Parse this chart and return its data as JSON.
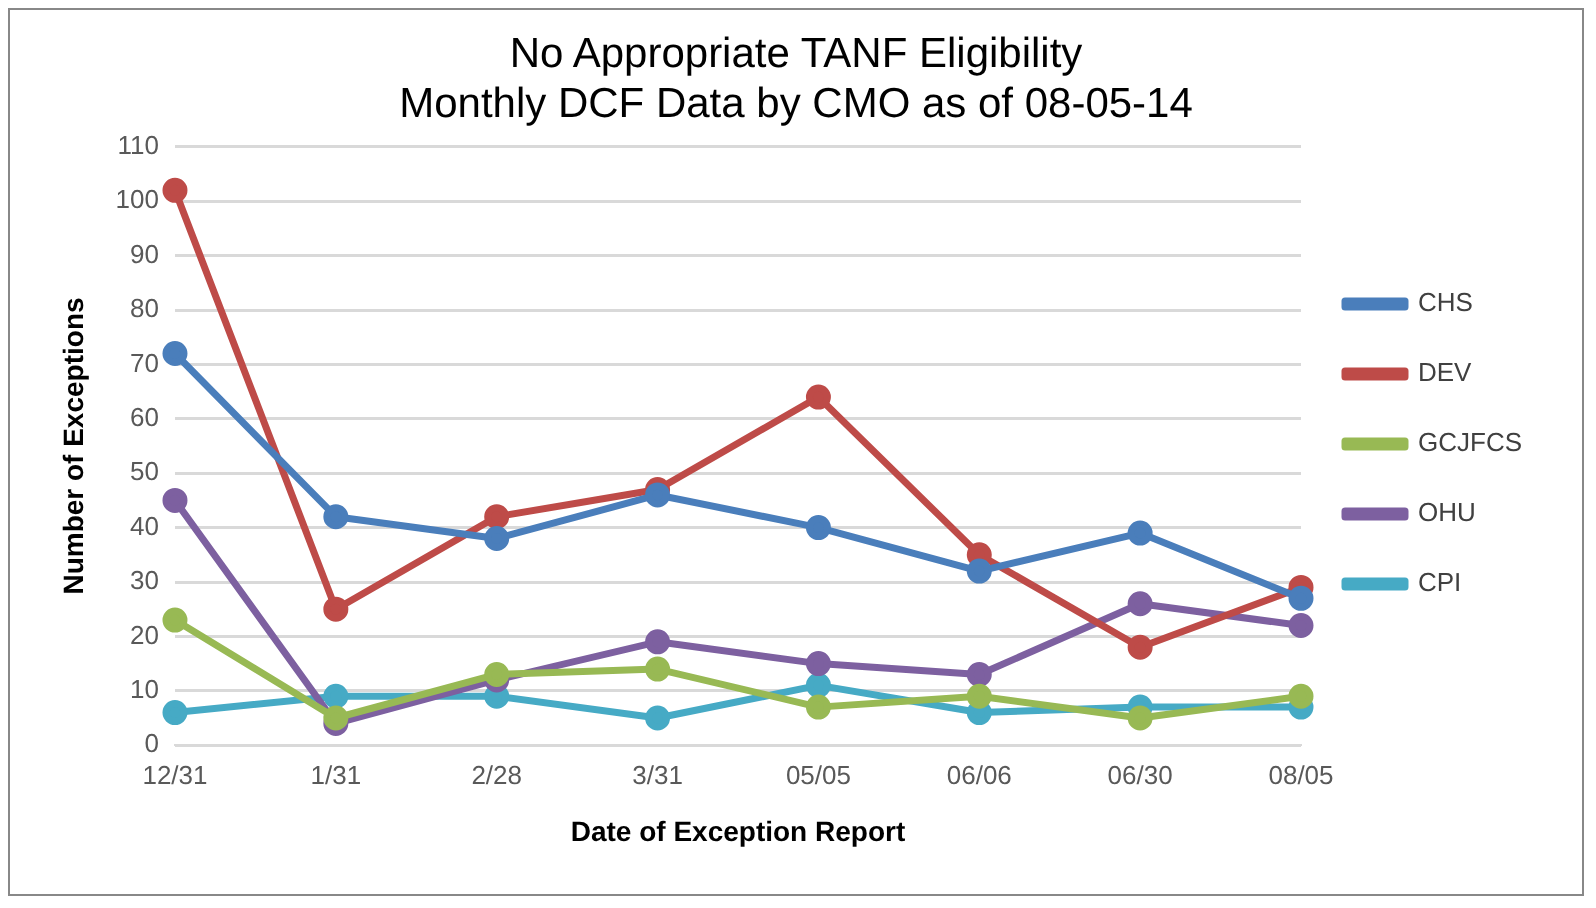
{
  "chart_data": {
    "type": "line",
    "title": "No Appropriate TANF Eligibility\nMonthly DCF Data by CMO as of 08-05-14",
    "xlabel": "Date of Exception Report",
    "ylabel": "Number of Exceptions",
    "categories": [
      "12/31",
      "1/31",
      "2/28",
      "3/31",
      "05/05",
      "06/06",
      "06/30",
      "08/05"
    ],
    "series": [
      {
        "name": "CHS",
        "color": "#4a7ebb",
        "values": [
          72,
          42,
          38,
          46,
          40,
          32,
          39,
          27
        ]
      },
      {
        "name": "DEV",
        "color": "#be4b48",
        "values": [
          102,
          25,
          42,
          47,
          64,
          35,
          18,
          29
        ]
      },
      {
        "name": "GCJFCS",
        "color": "#98b954",
        "values": [
          23,
          5,
          13,
          14,
          7,
          9,
          5,
          9
        ]
      },
      {
        "name": "OHU",
        "color": "#7d60a0",
        "values": [
          45,
          4,
          12,
          19,
          15,
          13,
          26,
          22
        ]
      },
      {
        "name": "CPI",
        "color": "#46aac5",
        "values": [
          6,
          9,
          9,
          5,
          11,
          6,
          7,
          7
        ]
      }
    ],
    "ylim": [
      0,
      110
    ],
    "yticks": [
      0,
      10,
      20,
      30,
      40,
      50,
      60,
      70,
      80,
      90,
      100,
      110
    ],
    "grid": "y",
    "legend": "right",
    "marker": "circle",
    "line_style": "solid"
  }
}
